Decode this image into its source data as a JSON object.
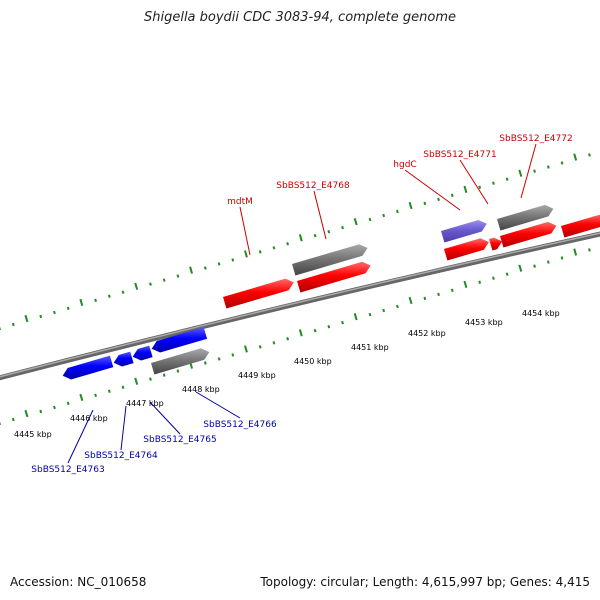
{
  "title": "Shigella boydii CDC 3083-94, complete genome",
  "footer": {
    "accession": "Accession: NC_010658",
    "stats": "Topology: circular; Length: 4,615,997 bp; Genes: 4,415"
  },
  "ticks": {
    "unit": "kbp",
    "labels": [
      "4445 kbp",
      "4446 kbp",
      "4447 kbp",
      "4448 kbp",
      "4449 kbp",
      "4450 kbp",
      "4451 kbp",
      "4452 kbp",
      "4453 kbp",
      "4454 kbp"
    ]
  },
  "genes": {
    "forward": [
      "mdtM",
      "SbBS512_E4768",
      "hgdC",
      "SbBS512_E4771",
      "SbBS512_E4772"
    ],
    "reverse": [
      "SbBS512_E4763",
      "SbBS512_E4764",
      "SbBS512_E4765",
      "SbBS512_E4766"
    ]
  },
  "colors": {
    "forward_gene": "#ff0000",
    "reverse_gene": "#0000ff",
    "pseudo_gene": "#6a5acd",
    "rna_gene": "#777777",
    "backbone": "#888888",
    "tick": "#228b22",
    "forward_label": "#cc0000",
    "reverse_label": "#0000aa"
  }
}
